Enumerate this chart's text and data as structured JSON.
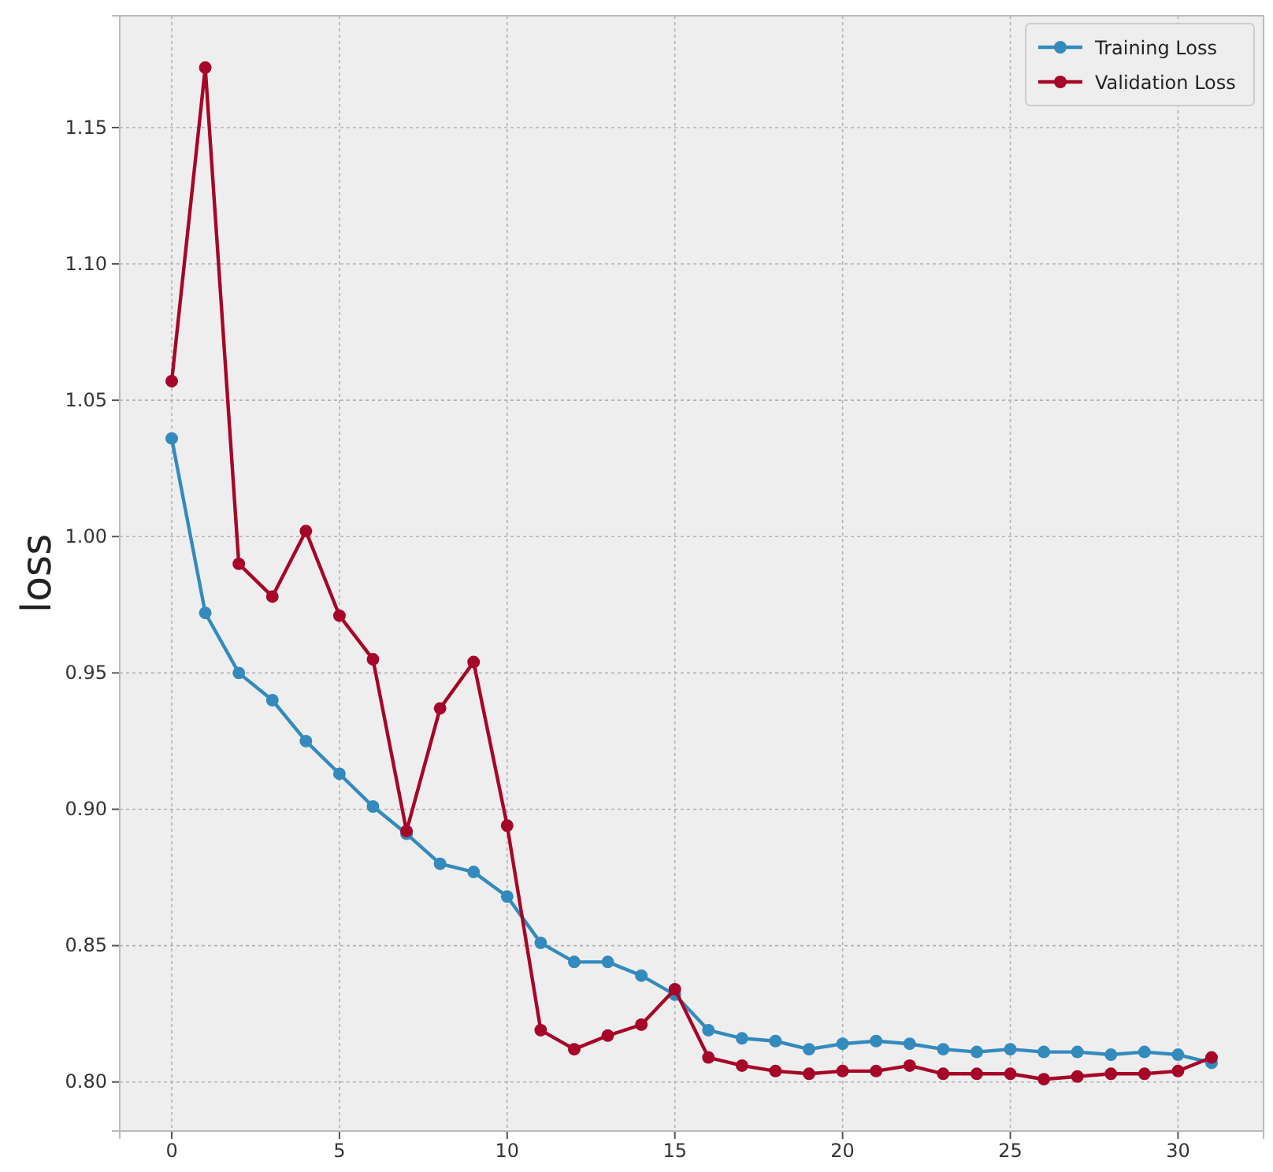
{
  "chart_data": {
    "type": "line",
    "ylabel": "loss",
    "x": [
      0,
      1,
      2,
      3,
      4,
      5,
      6,
      7,
      8,
      9,
      10,
      11,
      12,
      13,
      14,
      15,
      16,
      17,
      18,
      19,
      20,
      21,
      22,
      23,
      24,
      25,
      26,
      27,
      28,
      29,
      30,
      31
    ],
    "series": [
      {
        "name": "Training Loss",
        "color": "#348abd",
        "values": [
          1.036,
          0.972,
          0.95,
          0.94,
          0.925,
          0.913,
          0.901,
          0.891,
          0.88,
          0.877,
          0.868,
          0.851,
          0.844,
          0.844,
          0.839,
          0.832,
          0.819,
          0.816,
          0.815,
          0.812,
          0.814,
          0.815,
          0.814,
          0.812,
          0.811,
          0.812,
          0.811,
          0.811,
          0.81,
          0.811,
          0.81,
          0.807
        ]
      },
      {
        "name": "Validation Loss",
        "color": "#a60628",
        "values": [
          1.057,
          1.172,
          0.99,
          0.978,
          1.002,
          0.971,
          0.955,
          0.892,
          0.937,
          0.954,
          0.894,
          0.819,
          0.812,
          0.817,
          0.821,
          0.834,
          0.809,
          0.806,
          0.804,
          0.803,
          0.804,
          0.804,
          0.806,
          0.803,
          0.803,
          0.803,
          0.801,
          0.802,
          0.803,
          0.803,
          0.804,
          0.809
        ]
      }
    ],
    "xlim": [
      -1.55,
      32.55
    ],
    "ylim": [
      0.782,
      1.191
    ],
    "xticks": [
      0,
      5,
      10,
      15,
      20,
      25,
      30
    ],
    "yticks": [
      {
        "value": 0.8,
        "label": "0.80"
      },
      {
        "value": 0.85,
        "label": "0.85"
      },
      {
        "value": 0.9,
        "label": "0.90"
      },
      {
        "value": 0.95,
        "label": "0.95"
      },
      {
        "value": 1.0,
        "label": "1.00"
      },
      {
        "value": 1.05,
        "label": "1.05"
      },
      {
        "value": 1.1,
        "label": "1.10"
      },
      {
        "value": 1.15,
        "label": "1.15"
      }
    ],
    "grid": true,
    "legend": "top right",
    "marker": "circle",
    "line_style": "solid"
  }
}
